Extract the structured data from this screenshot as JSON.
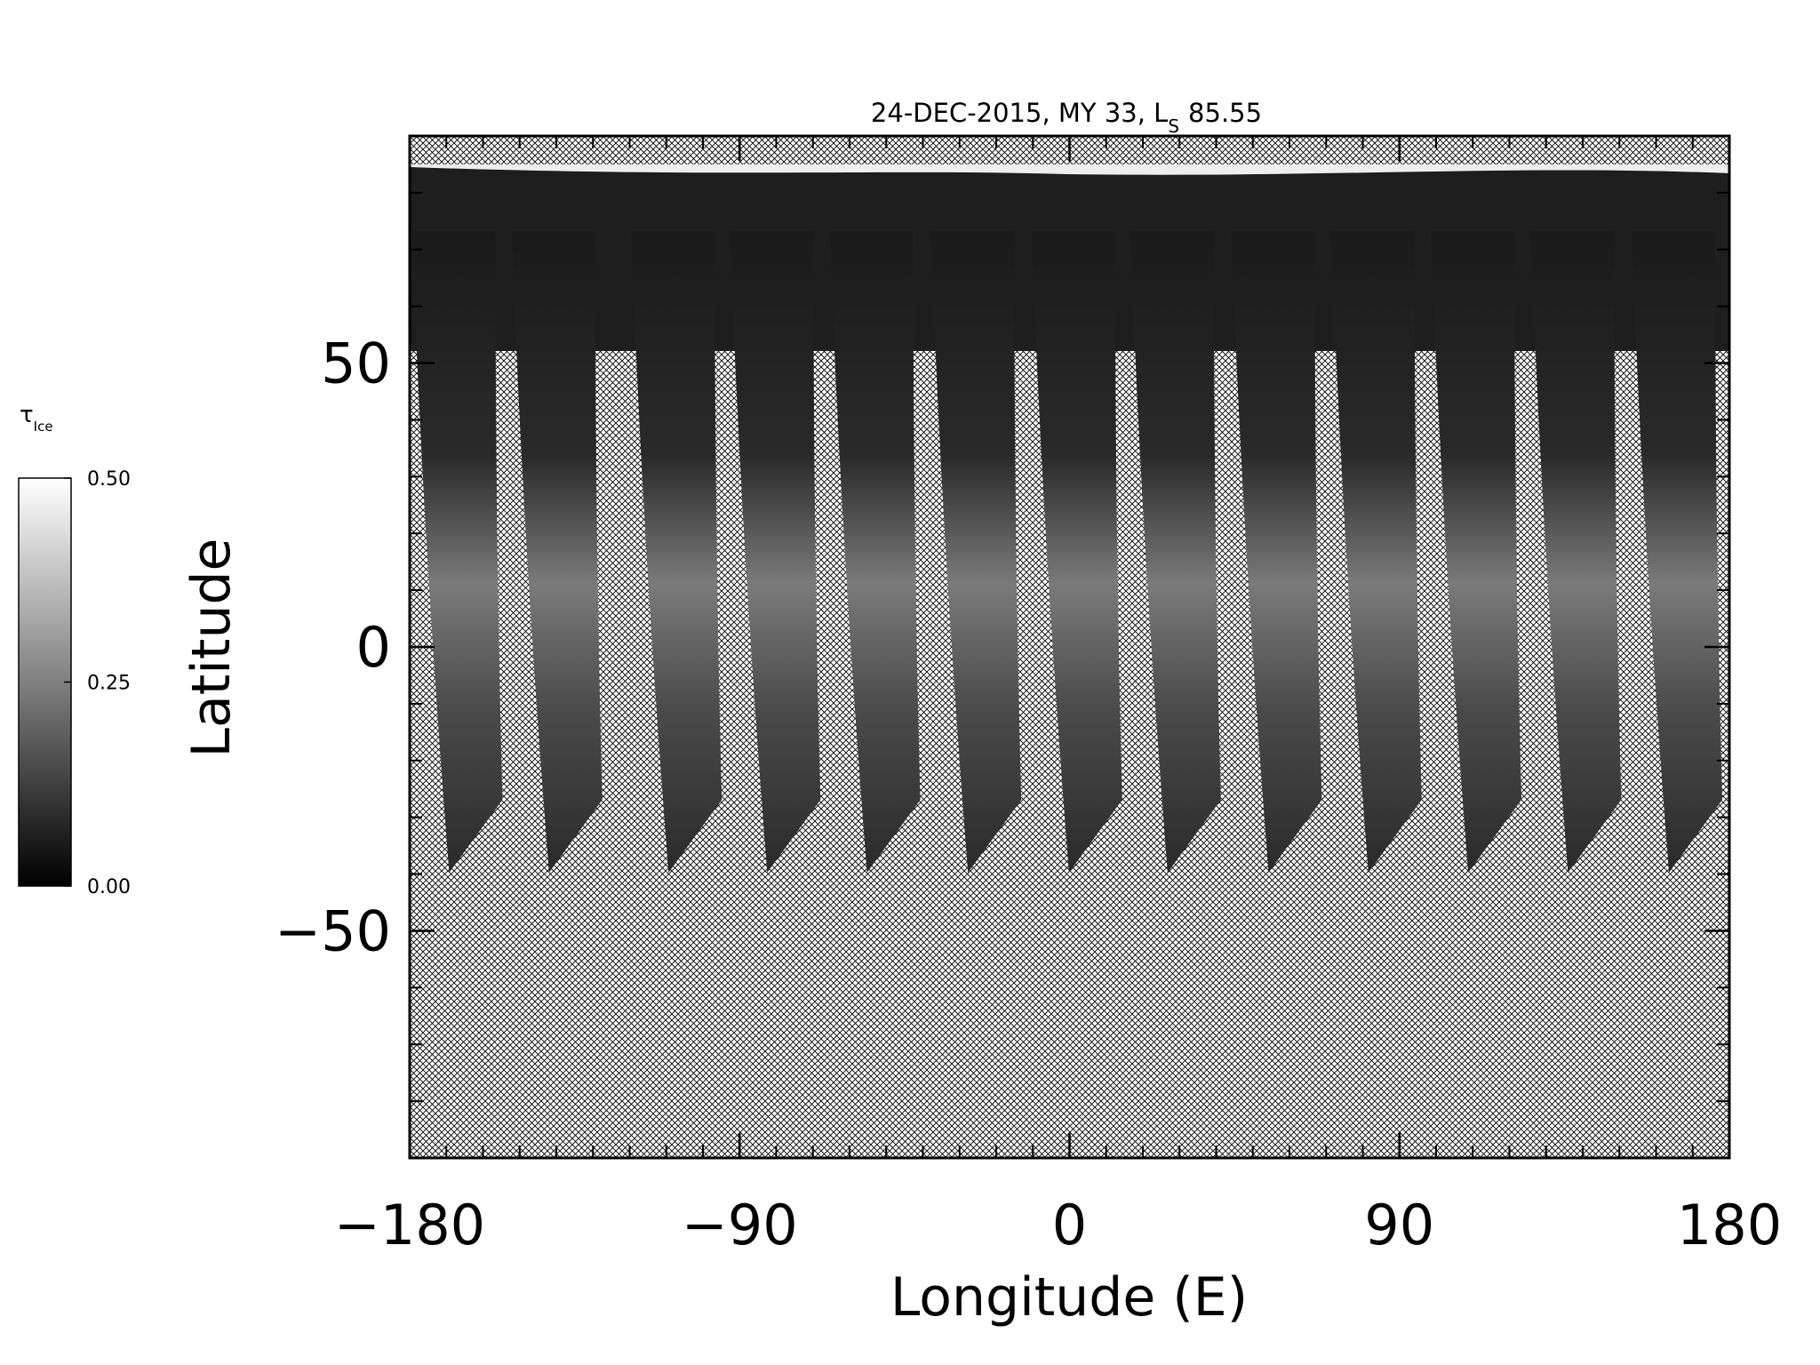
{
  "chart_data": {
    "type": "map",
    "title": {
      "main": "24-DEC-2015, MY 33,  L",
      "subscript": "S",
      "value": "85.55"
    },
    "xlabel": "Longitude (E)",
    "ylabel": "Latitude",
    "xlim": [
      -180,
      180
    ],
    "xticks": [
      {
        "value": -180,
        "label": "−180"
      },
      {
        "value": -90,
        "label": "−90"
      },
      0,
      90,
      180
    ],
    "ylim": [
      -90,
      90
    ],
    "yticks": [
      {
        "value": -50,
        "label": "−50"
      },
      0,
      50
    ],
    "colorbar": {
      "label": "τ",
      "label_subscript": "Ice",
      "lim": [
        0,
        0.5
      ],
      "ticks": [
        {
          "value": 0,
          "label": "0.00"
        },
        {
          "value": 0.25,
          "label": "0.25"
        },
        {
          "value": 0.5,
          "label": "0.50"
        }
      ]
    }
  }
}
